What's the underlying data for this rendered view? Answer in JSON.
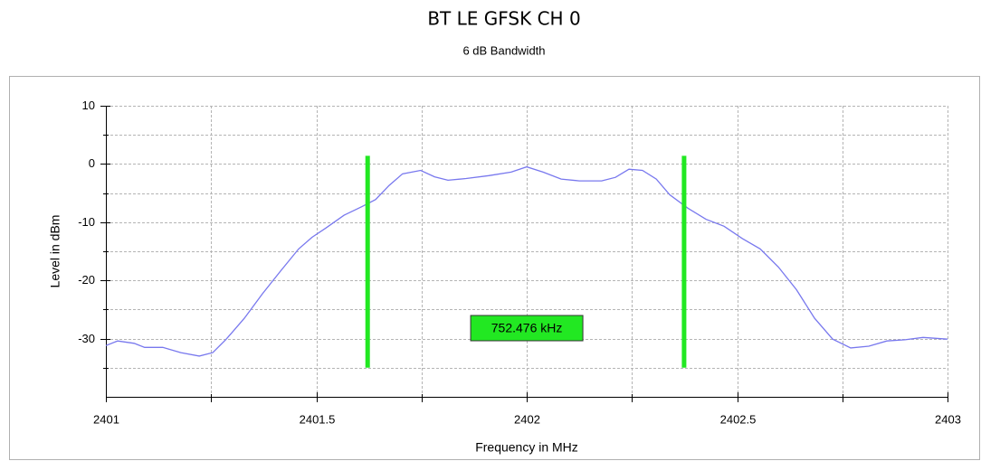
{
  "chart_data": {
    "type": "line",
    "title": "BT LE GFSK CH 0",
    "subtitle": "6 dB Bandwidth",
    "xlabel": "Frequency in MHz",
    "ylabel": "Level in dBm",
    "xlim": [
      2401,
      2403
    ],
    "ylim": [
      -40,
      10
    ],
    "xticks": [
      2401,
      2401.5,
      2402,
      2402.5,
      2403
    ],
    "yticks": [
      -30,
      -20,
      -10,
      0,
      10
    ],
    "xminor": [
      2401.25,
      2401.75,
      2402.25,
      2402.75
    ],
    "yminor": [
      -35,
      -25,
      -15,
      -5,
      5
    ],
    "grid": true,
    "series": [
      {
        "color": "#7878ee",
        "x": [
          2401,
          2401.028,
          2401.067,
          2401.092,
          2401.135,
          2401.178,
          2401.222,
          2401.254,
          2401.286,
          2401.329,
          2401.372,
          2401.415,
          2401.458,
          2401.49,
          2401.523,
          2401.566,
          2401.609,
          2401.641,
          2401.673,
          2401.705,
          2401.748,
          2401.781,
          2401.813,
          2401.856,
          2401.91,
          2401.963,
          2402,
          2402.039,
          2402.082,
          2402.125,
          2402.178,
          2402.211,
          2402.243,
          2402.275,
          2402.308,
          2402.34,
          2402.383,
          2402.426,
          2402.469,
          2402.512,
          2402.555,
          2402.598,
          2402.641,
          2402.684,
          2402.727,
          2402.77,
          2402.813,
          2402.856,
          2402.899,
          2402.942,
          2403
        ],
        "values": [
          -31.2,
          -30.4,
          -30.8,
          -31.5,
          -31.5,
          -32.4,
          -33.0,
          -32.4,
          -30.1,
          -26.5,
          -22.3,
          -18.4,
          -14.6,
          -12.6,
          -11.0,
          -8.8,
          -7.3,
          -6.1,
          -3.7,
          -1.7,
          -1.1,
          -2.2,
          -2.8,
          -2.5,
          -2.0,
          -1.4,
          -0.5,
          -1.4,
          -2.6,
          -2.9,
          -2.9,
          -2.3,
          -0.9,
          -1.1,
          -2.6,
          -5.3,
          -7.6,
          -9.5,
          -10.7,
          -12.8,
          -14.6,
          -17.7,
          -21.6,
          -26.5,
          -30.1,
          -31.6,
          -31.3,
          -30.4,
          -30.2,
          -29.8,
          -30.1
        ]
      }
    ],
    "markers": {
      "color": "#22e822",
      "x": [
        2401.622,
        2402.374
      ],
      "ylim": [
        -35,
        1.4
      ]
    },
    "bandwidth_label": "752.476 kHz"
  }
}
